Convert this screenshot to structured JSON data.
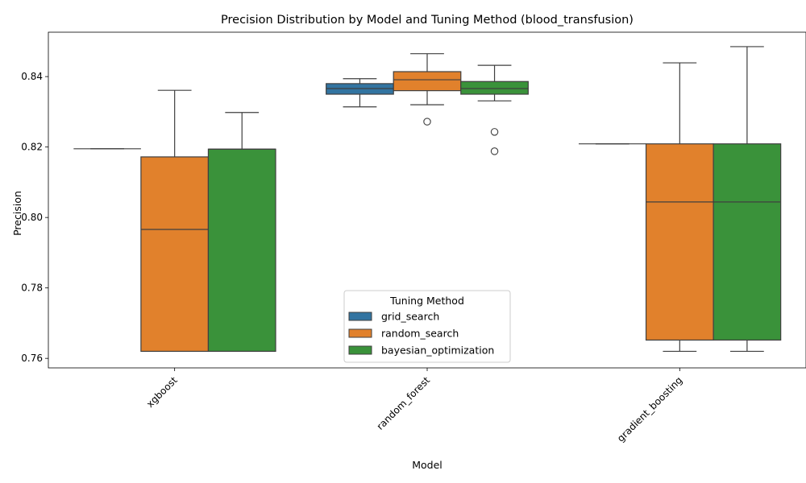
{
  "chart_data": {
    "type": "boxplot",
    "title": "Precision Distribution by Model and Tuning Method (blood_transfusion)",
    "xlabel": "Model",
    "ylabel": "Precision",
    "ylim": [
      0.7573,
      0.8526
    ],
    "yticks": [
      0.76,
      0.78,
      0.8,
      0.82,
      0.84
    ],
    "ytick_labels": [
      "0.76",
      "0.78",
      "0.80",
      "0.82",
      "0.84"
    ],
    "categories": [
      "xgboost",
      "random_forest",
      "gradient_boosting"
    ],
    "legend": {
      "title": "Tuning Method",
      "placement": "lower-center"
    },
    "series": [
      {
        "name": "grid_search",
        "color": "#3274a1",
        "boxes": [
          {
            "category": "xgboost",
            "q1": 0.8195,
            "median": 0.8195,
            "q3": 0.8195,
            "whislo": 0.8195,
            "whishi": 0.8195,
            "fliers": []
          },
          {
            "category": "random_forest",
            "q1": 0.835,
            "median": 0.8366,
            "q3": 0.838,
            "whislo": 0.8314,
            "whishi": 0.8394,
            "fliers": []
          },
          {
            "category": "gradient_boosting",
            "q1": 0.8209,
            "median": 0.8209,
            "q3": 0.8209,
            "whislo": 0.8209,
            "whishi": 0.8209,
            "fliers": []
          }
        ]
      },
      {
        "name": "random_search",
        "color": "#e1812c",
        "boxes": [
          {
            "category": "xgboost",
            "q1": 0.762,
            "median": 0.7966,
            "q3": 0.8172,
            "whislo": 0.762,
            "whishi": 0.8361,
            "fliers": []
          },
          {
            "category": "random_forest",
            "q1": 0.836,
            "median": 0.8391,
            "q3": 0.8414,
            "whislo": 0.832,
            "whishi": 0.8465,
            "fliers": [
              0.8272
            ]
          },
          {
            "category": "gradient_boosting",
            "q1": 0.7652,
            "median": 0.8044,
            "q3": 0.8209,
            "whislo": 0.762,
            "whishi": 0.8439,
            "fliers": []
          }
        ]
      },
      {
        "name": "bayesian_optimization",
        "color": "#3a923a",
        "boxes": [
          {
            "category": "xgboost",
            "q1": 0.762,
            "median": 0.8194,
            "q3": 0.8194,
            "whislo": 0.762,
            "whishi": 0.8298,
            "fliers": []
          },
          {
            "category": "random_forest",
            "q1": 0.835,
            "median": 0.8366,
            "q3": 0.8386,
            "whislo": 0.8331,
            "whishi": 0.8432,
            "fliers": [
              0.8243,
              0.8188
            ]
          },
          {
            "category": "gradient_boosting",
            "q1": 0.7652,
            "median": 0.8044,
            "q3": 0.8209,
            "whislo": 0.762,
            "whishi": 0.8485,
            "fliers": []
          }
        ]
      }
    ]
  }
}
